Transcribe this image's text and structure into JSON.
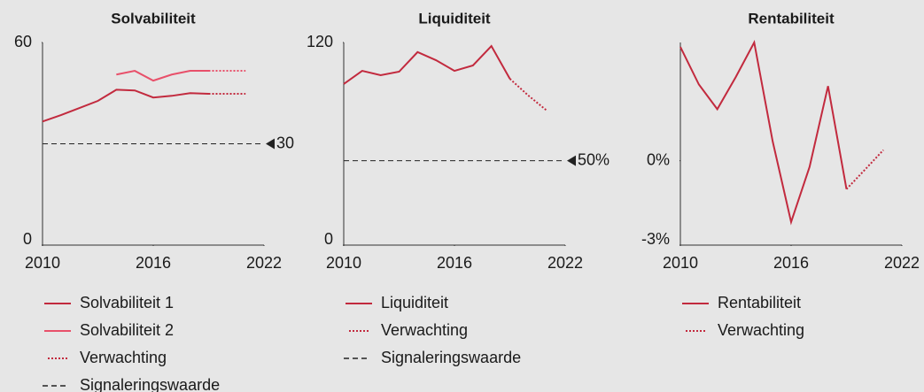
{
  "chart_data": [
    {
      "type": "line",
      "title": "Solvabiliteit",
      "x": [
        2010,
        2011,
        2012,
        2013,
        2014,
        2015,
        2016,
        2017,
        2018,
        2019,
        2020,
        2021
      ],
      "xlim": [
        2010,
        2022
      ],
      "xticks": [
        2010,
        2016,
        2022
      ],
      "ylim": [
        0,
        60
      ],
      "yticks": [
        0,
        60
      ],
      "series": [
        {
          "name": "Solvabiliteit 1",
          "color": "#c22a3e",
          "line": "solid",
          "values": [
            36.6,
            38.5,
            40.6,
            42.7,
            46.0,
            45.8,
            43.7,
            44.2,
            45.0,
            44.8,
            null,
            null
          ]
        },
        {
          "name": "Solvabiliteit 2",
          "color": "#e8506a",
          "line": "solid",
          "values": [
            null,
            null,
            null,
            null,
            50.5,
            51.6,
            48.7,
            50.5,
            51.6,
            51.6,
            null,
            null
          ]
        },
        {
          "name": "Verwachting",
          "color": "#c22a3e",
          "line": "dotted",
          "values": [
            null,
            null,
            null,
            null,
            null,
            null,
            null,
            null,
            null,
            44.8,
            44.8,
            44.8
          ]
        },
        {
          "color": "#e8506a",
          "line": "dotted",
          "values": [
            null,
            null,
            null,
            null,
            null,
            null,
            null,
            null,
            null,
            51.6,
            51.6,
            51.6
          ]
        }
      ],
      "threshold": {
        "name": "Signaleringswaarde",
        "value": 30
      }
    },
    {
      "type": "line",
      "title": "Liquiditeit",
      "x": [
        2010,
        2011,
        2012,
        2013,
        2014,
        2015,
        2016,
        2017,
        2018,
        2019,
        2020,
        2021
      ],
      "xlim": [
        2010,
        2022
      ],
      "xticks": [
        2010,
        2016,
        2022
      ],
      "ylim": [
        0,
        120
      ],
      "yticks": [
        0,
        120
      ],
      "series": [
        {
          "name": "Liquiditeit",
          "color": "#c22a3e",
          "line": "solid",
          "values": [
            95.4,
            103.2,
            100.6,
            102.7,
            114.3,
            109.5,
            103.2,
            106.4,
            117.9,
            98.5,
            null,
            null
          ]
        },
        {
          "name": "Verwachting",
          "color": "#c22a3e",
          "line": "dotted",
          "values": [
            null,
            null,
            null,
            null,
            null,
            null,
            null,
            null,
            null,
            98.5,
            88.6,
            79.7
          ]
        }
      ],
      "threshold": {
        "name": "Signaleringswaarde",
        "value": 50,
        "label": "50%"
      }
    },
    {
      "type": "line",
      "title": "Rentabiliteit",
      "x": [
        2010,
        2011,
        2012,
        2013,
        2014,
        2015,
        2016,
        2017,
        2018,
        2019,
        2020,
        2021
      ],
      "xlim": [
        2010,
        2022
      ],
      "xticks": [
        2010,
        2016,
        2022
      ],
      "ylim": [
        -3,
        4.2
      ],
      "yticks": [
        {
          "value": -3,
          "label": "-3%"
        },
        {
          "value": 0,
          "label": "0%"
        }
      ],
      "series": [
        {
          "name": "Rentabiliteit",
          "color": "#c22a3e",
          "line": "solid",
          "values": [
            4.04,
            2.71,
            1.83,
            2.97,
            4.2,
            0.69,
            -2.18,
            -0.22,
            2.65,
            -1.01,
            null,
            null
          ]
        },
        {
          "name": "Verwachting",
          "color": "#c22a3e",
          "line": "dotted",
          "values": [
            null,
            null,
            null,
            null,
            null,
            null,
            null,
            null,
            null,
            -1.01,
            -0.32,
            0.38
          ]
        }
      ]
    }
  ]
}
